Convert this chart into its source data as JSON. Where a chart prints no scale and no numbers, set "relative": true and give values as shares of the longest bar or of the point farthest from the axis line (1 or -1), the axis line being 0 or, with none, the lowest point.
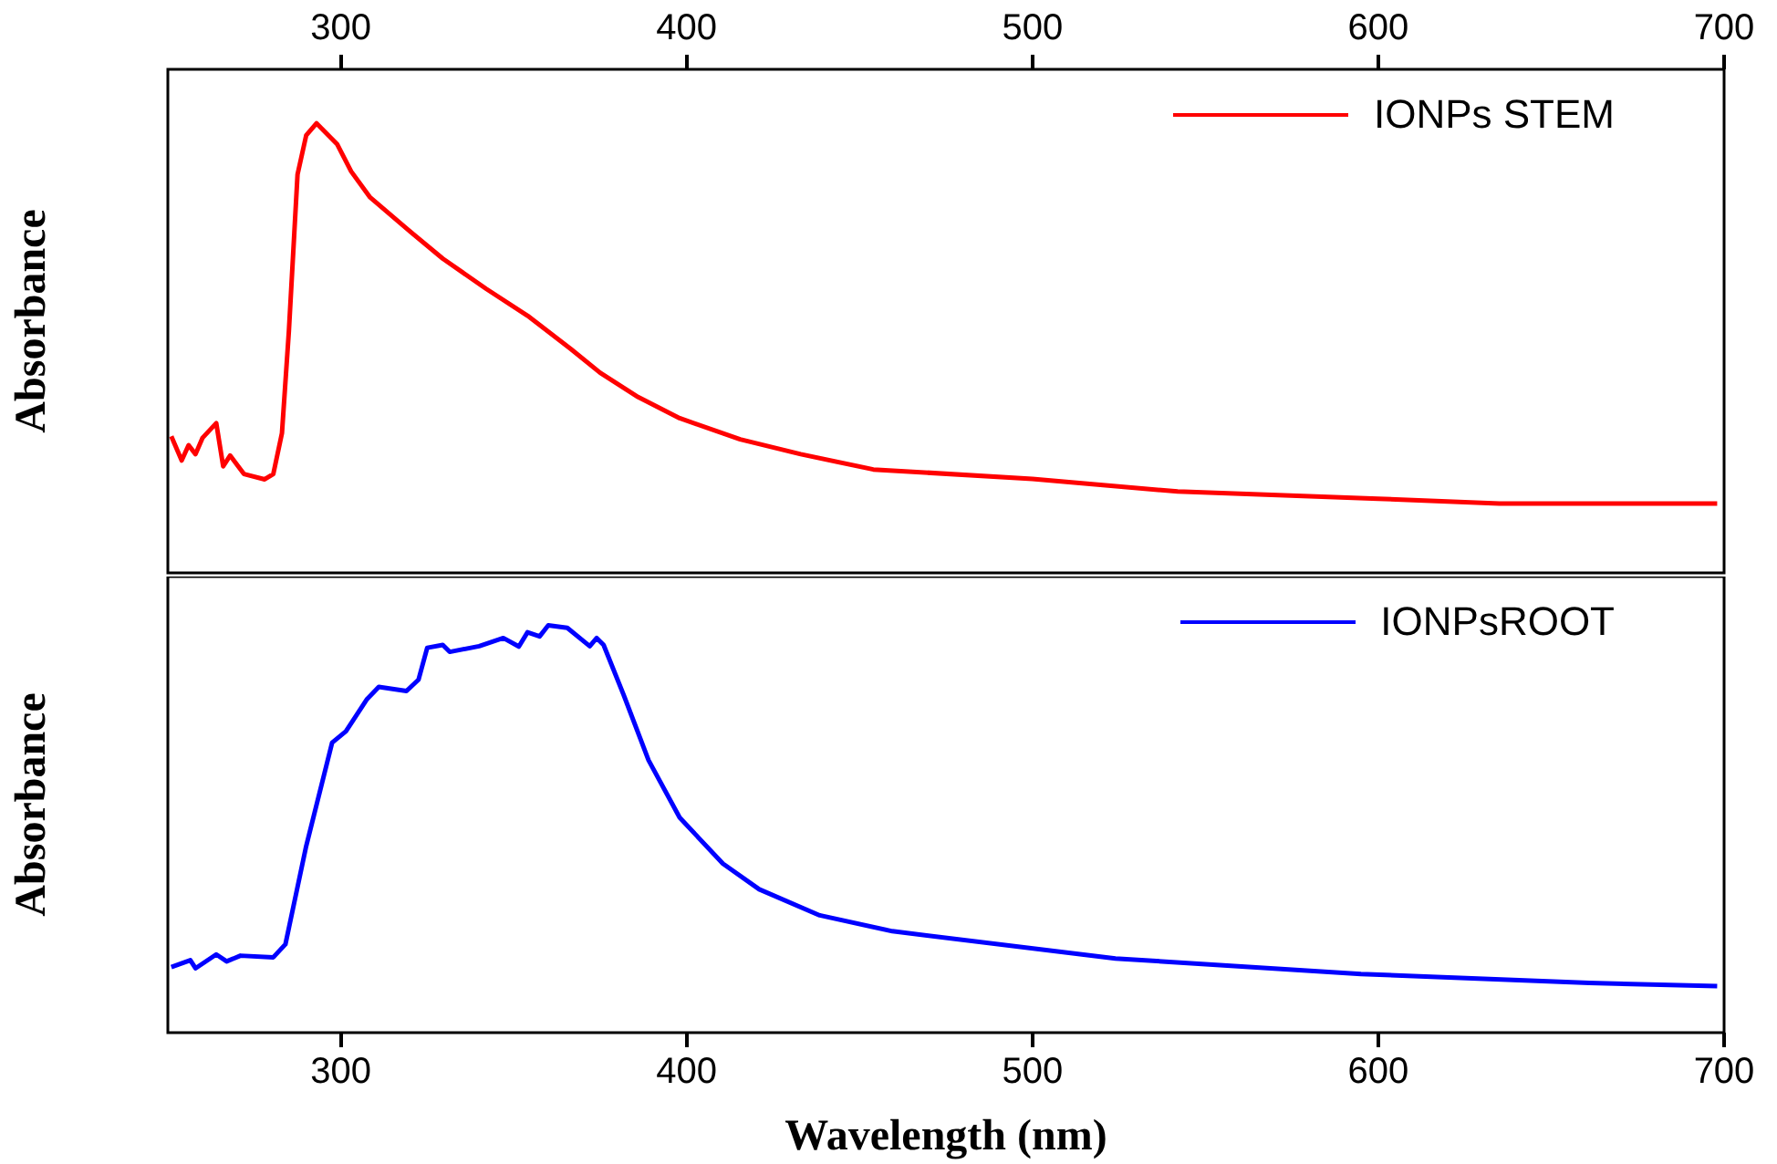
{
  "chart_data": [
    {
      "type": "line",
      "ylabel": "Absorbance",
      "relative": true,
      "legend": "top right",
      "tick_labels": "x",
      "xlim": [
        250,
        700
      ],
      "xticks": [
        300,
        400,
        500,
        600,
        700
      ],
      "series": [
        {
          "name": "IONPs STEM",
          "color": "#ff0000",
          "x": [
            251,
            254,
            256,
            258,
            260,
            264,
            266,
            268,
            272,
            278,
            280.5,
            283,
            285,
            287.5,
            290,
            293,
            299,
            303,
            308.5,
            319,
            329.5,
            342,
            354,
            366.5,
            375,
            386,
            398,
            415.5,
            433,
            454,
            500,
            542,
            600,
            635,
            698
          ],
          "values": [
            0.304,
            0.25,
            0.284,
            0.264,
            0.3,
            0.333,
            0.237,
            0.261,
            0.22,
            0.208,
            0.22,
            0.311,
            0.538,
            0.886,
            0.973,
            1.0,
            0.953,
            0.893,
            0.835,
            0.766,
            0.699,
            0.632,
            0.572,
            0.498,
            0.445,
            0.391,
            0.344,
            0.297,
            0.264,
            0.23,
            0.209,
            0.181,
            0.165,
            0.154,
            0.154
          ]
        }
      ]
    },
    {
      "type": "line",
      "ylabel": "Absorbance",
      "xlabel": "Wavelength (nm)",
      "relative": true,
      "legend": "top right",
      "tick_labels": "x",
      "xlim": [
        250,
        700
      ],
      "xticks": [
        300,
        400,
        500,
        600,
        700
      ],
      "series": [
        {
          "name": "IONPsROOT",
          "color": "#0000ff",
          "x": [
            251,
            256.5,
            258,
            264,
            267,
            271,
            280.5,
            284,
            290,
            297.5,
            301.5,
            307.5,
            311,
            319,
            322.5,
            325,
            329.5,
            331.5,
            340,
            347,
            351.5,
            354,
            357.5,
            360,
            365.5,
            372,
            374,
            376,
            382,
            389,
            398,
            410.5,
            421,
            438.5,
            459.5,
            524,
            595,
            661,
            698
          ],
          "values": [
            0.161,
            0.178,
            0.158,
            0.192,
            0.175,
            0.189,
            0.185,
            0.217,
            0.458,
            0.712,
            0.74,
            0.818,
            0.849,
            0.839,
            0.867,
            0.945,
            0.952,
            0.935,
            0.949,
            0.969,
            0.948,
            0.983,
            0.973,
            1.0,
            0.994,
            0.949,
            0.969,
            0.952,
            0.825,
            0.669,
            0.528,
            0.415,
            0.352,
            0.288,
            0.249,
            0.182,
            0.144,
            0.122,
            0.114
          ]
        }
      ]
    }
  ]
}
